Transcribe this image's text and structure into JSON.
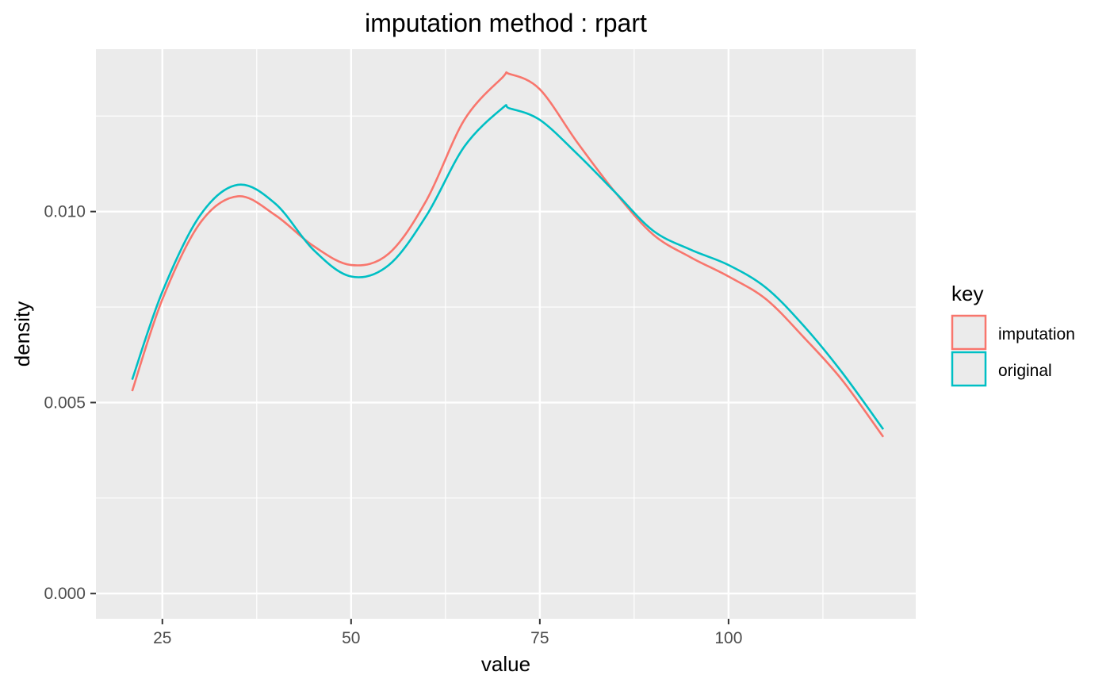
{
  "chart_data": {
    "type": "line",
    "title": "imputation method : rpart",
    "xlabel": "value",
    "ylabel": "density",
    "xlim": [
      16.2,
      124.8
    ],
    "ylim": [
      -0.00066,
      0.01425
    ],
    "x_ticks": [
      25,
      50,
      75,
      100
    ],
    "x_tick_labels": [
      "25",
      "50",
      "75",
      "100"
    ],
    "y_ticks": [
      0.0,
      0.005,
      0.01
    ],
    "y_tick_labels": [
      "0.000",
      "0.005",
      "0.010"
    ],
    "grid": true,
    "legend": {
      "title": "key",
      "position": "right",
      "entries": [
        "imputation",
        "original"
      ]
    },
    "series": [
      {
        "name": "imputation",
        "color": "#F8766D",
        "x": [
          21,
          25,
          30,
          35,
          40,
          45,
          50,
          55,
          60,
          65,
          70,
          71,
          75,
          80,
          85,
          90,
          95,
          100,
          105,
          110,
          115,
          120.5
        ],
        "y": [
          0.0053,
          0.0077,
          0.0097,
          0.0104,
          0.0099,
          0.0091,
          0.0086,
          0.0089,
          0.0103,
          0.0124,
          0.0135,
          0.0136,
          0.0132,
          0.0118,
          0.0105,
          0.0094,
          0.0088,
          0.0083,
          0.0077,
          0.0067,
          0.0056,
          0.0041
        ]
      },
      {
        "name": "original",
        "color": "#00BFC4",
        "x": [
          21,
          25,
          30,
          35,
          40,
          45,
          50,
          55,
          60,
          65,
          70,
          71,
          75,
          80,
          85,
          90,
          95,
          100,
          105,
          110,
          115,
          120.5
        ],
        "y": [
          0.0056,
          0.0079,
          0.0099,
          0.0107,
          0.0102,
          0.009,
          0.0083,
          0.0086,
          0.0099,
          0.0117,
          0.0127,
          0.0127,
          0.0124,
          0.0115,
          0.0105,
          0.0095,
          0.009,
          0.0086,
          0.008,
          0.007,
          0.0058,
          0.0043
        ]
      }
    ]
  }
}
